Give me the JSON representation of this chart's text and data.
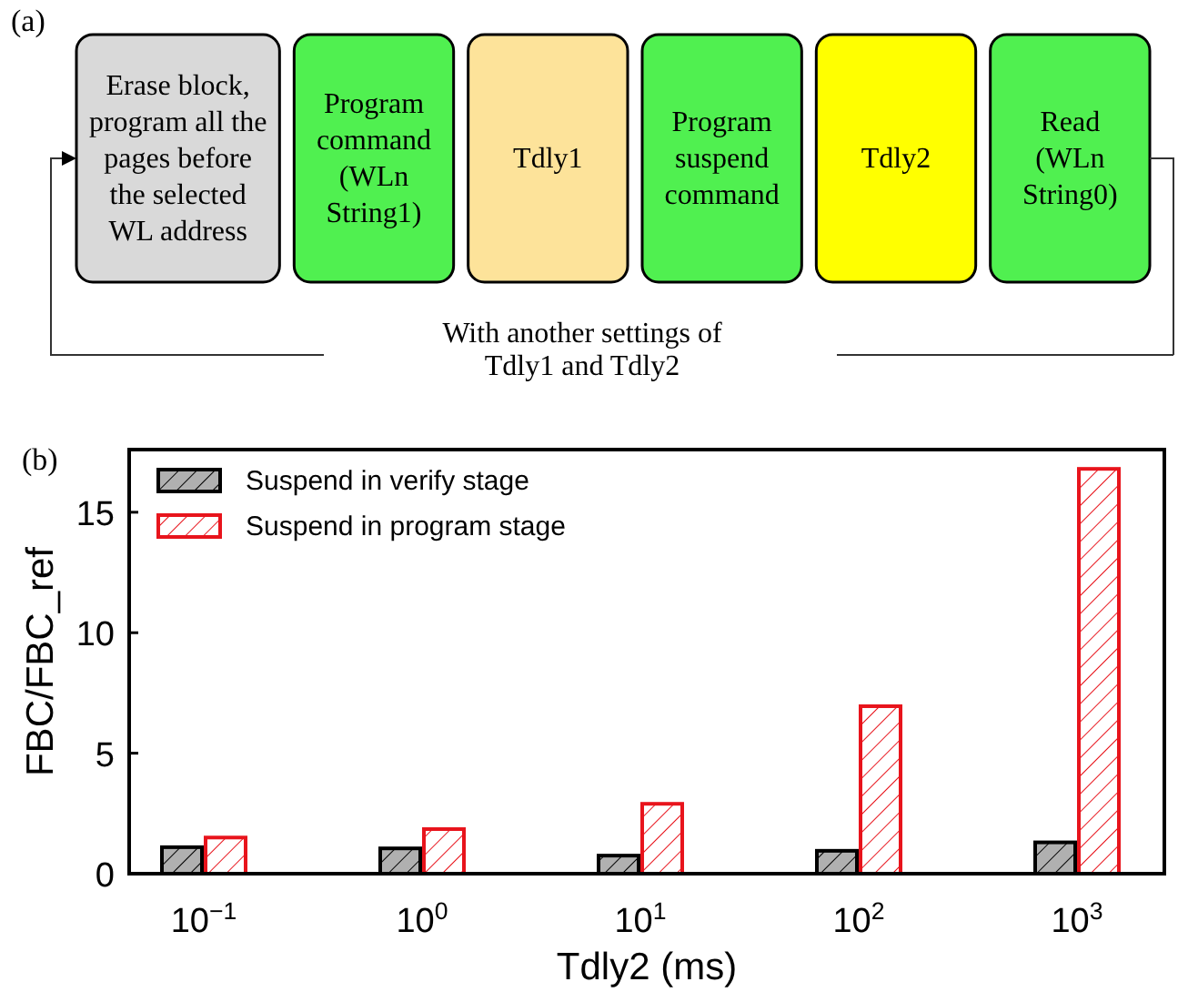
{
  "chart_data": [
    {
      "type": "other",
      "title": "(a)",
      "categories": [
        "Erase block,\nprogram all the\npages before\nthe selected\nWL address",
        "Program\ncommand\n(WLn\nString1)",
        "Tdly1",
        "Program\nsuspend\ncommand",
        "Tdly2",
        "Read\n(WLn\nString0)"
      ],
      "colors": [
        "#d9d9d9",
        "#50f050",
        "#fde39a",
        "#50f050",
        "#ffff00",
        "#50f050"
      ],
      "annotations": [
        "With  another settings of\nTdly1 and Tdly2"
      ]
    },
    {
      "type": "bar",
      "title": "(b)",
      "xlabel": "Tdly2 (ms)",
      "ylabel": "FBC/FBC_ref",
      "categories": [
        "10$^{−1}$",
        "10$^{0}$",
        "10$^{1}$",
        "10$^{2}$",
        "10$^{3}$"
      ],
      "series": [
        {
          "name": "Suspend in verify stage",
          "color": "#000000",
          "values": [
            1.1,
            1.05,
            0.75,
            0.95,
            1.3
          ]
        },
        {
          "name": "Suspend in program stage",
          "color": "#e8141c",
          "values": [
            1.5,
            1.85,
            2.9,
            6.95,
            16.8
          ]
        }
      ],
      "ylim": [
        0,
        17.6
      ],
      "yticks": [
        0,
        5,
        10,
        15
      ],
      "grid": false,
      "legend": "top left"
    }
  ]
}
